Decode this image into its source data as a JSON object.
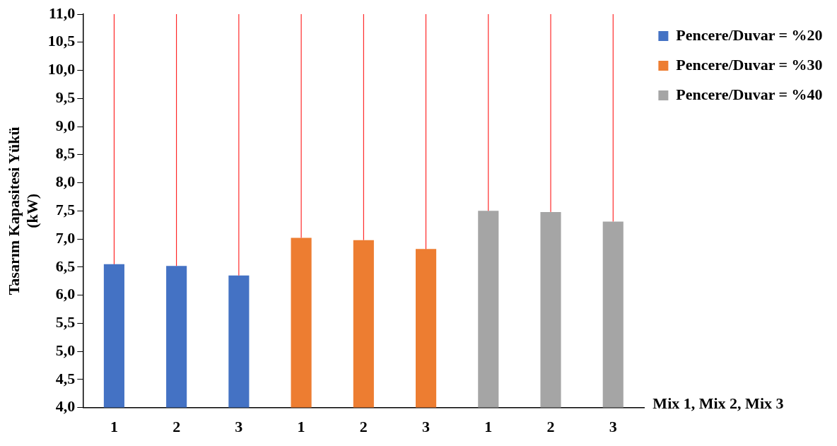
{
  "chart_data": {
    "type": "bar",
    "ylabel": "Tasarım Kapasitesi Yükü\n(kW)",
    "xlabel": "Mix 1, Mix 2, Mix 3",
    "categories": [
      "1",
      "2",
      "3",
      "1",
      "2",
      "3",
      "1",
      "2",
      "3"
    ],
    "series": [
      {
        "name": "Pencere/Duvar = %20",
        "color": "#4472c4",
        "values": [
          6.55,
          6.52,
          6.35,
          null,
          null,
          null,
          null,
          null,
          null
        ],
        "errors": [
          [
            6.55,
            11
          ],
          [
            6.52,
            11
          ],
          [
            6.35,
            11
          ],
          null,
          null,
          null,
          null,
          null,
          null
        ]
      },
      {
        "name": "Pencere/Duvar = %30",
        "color": "#ed7d31",
        "values": [
          null,
          null,
          null,
          7.02,
          6.98,
          6.82,
          null,
          null,
          null
        ],
        "errors": [
          null,
          null,
          null,
          [
            7.02,
            11
          ],
          [
            6.98,
            11
          ],
          [
            6.82,
            11
          ],
          null,
          null,
          null
        ]
      },
      {
        "name": "Pencere/Duvar = %40",
        "color": "#a5a5a5",
        "values": [
          null,
          null,
          null,
          null,
          null,
          null,
          7.5,
          7.48,
          7.31
        ],
        "errors": [
          null,
          null,
          null,
          null,
          null,
          null,
          [
            7.5,
            11
          ],
          [
            7.48,
            11
          ],
          [
            7.31,
            11
          ]
        ]
      }
    ],
    "ylim": [
      4,
      11
    ],
    "yticks": [
      {
        "value": 4,
        "label": "4,0"
      },
      {
        "value": 4.5,
        "label": "4,5"
      },
      {
        "value": 5,
        "label": "5,0"
      },
      {
        "value": 5.5,
        "label": "5,5"
      },
      {
        "value": 6,
        "label": "6,0"
      },
      {
        "value": 6.5,
        "label": "6,5"
      },
      {
        "value": 7,
        "label": "7,0"
      },
      {
        "value": 7.5,
        "label": "7,5"
      },
      {
        "value": 8,
        "label": "8,0"
      },
      {
        "value": 8.5,
        "label": "8,5"
      },
      {
        "value": 9,
        "label": "9,0"
      },
      {
        "value": 9.5,
        "label": "9,5"
      },
      {
        "value": 10,
        "label": "10,0"
      },
      {
        "value": 10.5,
        "label": "10,5"
      },
      {
        "value": 11,
        "label": "11,0"
      }
    ],
    "grid": false,
    "legend": "top right"
  }
}
